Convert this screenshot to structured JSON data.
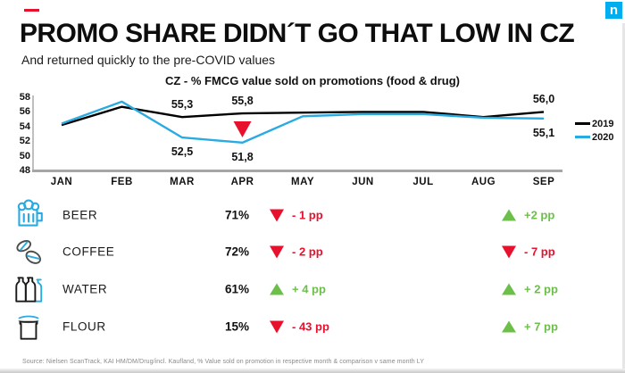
{
  "page": {
    "title": "PROMO SHARE DIDN´T GO THAT LOW IN CZ",
    "subtitle": "And returned quickly to the pre-COVID values",
    "logo_letter": "n",
    "source": "Source: Nielsen ScanTrack, KAI HM/DM/Drug/incl. Kaufland, % Value sold on promotion in respective month & comparison v same month LY"
  },
  "colors": {
    "red": "#E8112D",
    "green": "#6CC04A",
    "blue": "#29ABE2",
    "black": "#000000",
    "logo_blue": "#00AEEF",
    "axis_gray": "#A6A6A6"
  },
  "chart_data": {
    "type": "line",
    "title": "CZ - % FMCG value sold on promotions (food & drug)",
    "categories": [
      "JAN",
      "FEB",
      "MAR",
      "APR",
      "MAY",
      "JUN",
      "JUL",
      "AUG",
      "SEP"
    ],
    "y_ticks": [
      58,
      56,
      54,
      52,
      50,
      48
    ],
    "ylim": [
      48,
      58
    ],
    "grid": false,
    "legend_position": "right",
    "series": [
      {
        "name": "2019",
        "color": "#000000",
        "values": [
          54.2,
          56.7,
          55.3,
          55.8,
          55.9,
          56.0,
          56.0,
          55.3,
          56.0
        ]
      },
      {
        "name": "2020",
        "color": "#29ABE2",
        "values": [
          54.4,
          57.4,
          52.5,
          51.8,
          55.4,
          55.7,
          55.7,
          55.2,
          55.1
        ]
      }
    ],
    "point_labels": [
      {
        "text": "55,3",
        "series": "2019",
        "month": "MAR"
      },
      {
        "text": "55,8",
        "series": "2019",
        "month": "APR"
      },
      {
        "text": "56,0",
        "series": "2019",
        "month": "SEP"
      },
      {
        "text": "52,5",
        "series": "2020",
        "month": "MAR"
      },
      {
        "text": "51,8",
        "series": "2020",
        "month": "APR"
      },
      {
        "text": "55,1",
        "series": "2020",
        "month": "SEP"
      }
    ],
    "annotation": {
      "type": "down-triangle",
      "month": "APR",
      "color": "#E8112D"
    }
  },
  "legend": [
    {
      "label": "2019",
      "color": "#000000"
    },
    {
      "label": "2020",
      "color": "#29ABE2"
    }
  ],
  "table": {
    "rows": [
      {
        "icon": "beer-icon",
        "name": "BEER",
        "value": "71%",
        "change1": {
          "dir": "down",
          "text": "- 1 pp"
        },
        "change2": {
          "dir": "up",
          "text": "+2 pp"
        }
      },
      {
        "icon": "coffee-icon",
        "name": "COFFEE",
        "value": "72%",
        "change1": {
          "dir": "down",
          "text": "- 2 pp"
        },
        "change2": {
          "dir": "down",
          "text": "- 7 pp"
        }
      },
      {
        "icon": "water-icon",
        "name": "WATER",
        "value": "61%",
        "change1": {
          "dir": "up",
          "text": "+ 4 pp"
        },
        "change2": {
          "dir": "up",
          "text": "+ 2 pp"
        }
      },
      {
        "icon": "flour-icon",
        "name": "FLOUR",
        "value": "15%",
        "change1": {
          "dir": "down",
          "text": "- 43 pp"
        },
        "change2": {
          "dir": "up",
          "text": "+ 7 pp"
        }
      }
    ]
  }
}
